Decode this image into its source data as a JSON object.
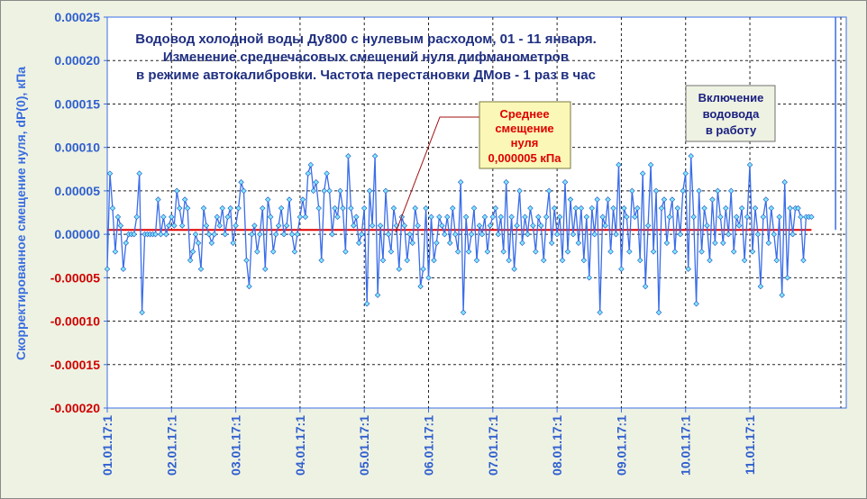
{
  "chart_data": {
    "type": "line",
    "title_lines": [
      "Водовод холодной воды Ду800 с нулевым расходом, 01 - 11 января.",
      "Изменение среднечасовых смещений нуля дифманометров",
      "в режиме автокалибровки. Частота перестановки ДМов - 1 раз в час"
    ],
    "ylabel": "Скорректированное смещение нуля, dP(0), кПа",
    "ylim": [
      -0.0002,
      0.00025
    ],
    "yticks": [
      0.00025,
      0.0002,
      0.00015,
      0.0001,
      5e-05,
      0.0,
      -5e-05,
      -0.0001,
      -0.00015,
      -0.0002
    ],
    "ytick_labels": [
      "0.00025",
      "0.00020",
      "0.00015",
      "0.00010",
      "0.00005",
      "0.00000",
      "-0.00005",
      "-0.00010",
      "-0.00015",
      "-0.00020"
    ],
    "xtick_labels": [
      "01.01.17:1",
      "02.01.17:1",
      "03.01.17:1",
      "04.01.17:1",
      "05.01.17:1",
      "06.01.17:1",
      "07.01.17:1",
      "08.01.17:1",
      "09.01.17:1",
      "10.01.17:1",
      "11.01.17:1"
    ],
    "points_per_day": 24,
    "grid": true,
    "mean_value": 5e-06,
    "colors": {
      "series": "#3a6de8",
      "marker": "#7fe8ff",
      "mean_line": "#e00000",
      "frame": "#3a6de8"
    },
    "series": [
      {
        "values": [
          -4e-05,
          7e-05,
          3e-05,
          -2e-05,
          2e-05,
          1e-05,
          -4e-05,
          -1e-05,
          0.0,
          0.0,
          0.0,
          2e-05,
          7e-05,
          -9e-05,
          0.0,
          0.0,
          0.0,
          0.0,
          0.0,
          4e-05,
          0.0,
          2e-05,
          0.0,
          1e-05,
          2e-05,
          1e-05,
          5e-05,
          3e-05,
          1e-05,
          4e-05,
          3e-05,
          -3e-05,
          -2e-05,
          0.0,
          -1e-05,
          -4e-05,
          3e-05,
          1e-05,
          0.0,
          -1e-05,
          0.0,
          2e-05,
          1e-05,
          3e-05,
          0.0,
          2e-05,
          3e-05,
          -1e-05,
          1e-05,
          3e-05,
          6e-05,
          5e-05,
          -3e-05,
          -6e-05,
          0.0,
          1e-05,
          -2e-05,
          0.0,
          3e-05,
          -4e-05,
          4e-05,
          2e-05,
          -2e-05,
          0.0,
          1e-05,
          3e-05,
          0.0,
          1e-05,
          4e-05,
          0.0,
          -2e-05,
          0.0,
          2e-05,
          4e-05,
          2e-05,
          7e-05,
          8e-05,
          5e-05,
          6e-05,
          3e-05,
          -3e-05,
          5e-05,
          7e-05,
          5e-05,
          0.0,
          3e-05,
          2e-05,
          5e-05,
          3e-05,
          -2e-05,
          9e-05,
          3e-05,
          1e-05,
          2e-05,
          -1e-05,
          0.0,
          3e-05,
          -8e-05,
          5e-05,
          1e-05,
          9e-05,
          -7e-05,
          1e-05,
          -3e-05,
          5e-05,
          0.0,
          -2e-05,
          3e-05,
          1e-05,
          -4e-05,
          2e-05,
          1e-05,
          -3e-05,
          0.0,
          -1e-05,
          3e-05,
          1e-05,
          -6e-05,
          -4e-05,
          3e-05,
          -5e-05,
          2e-05,
          -3e-05,
          -1e-05,
          2e-05,
          1e-05,
          0.0,
          2e-05,
          -1e-05,
          3e-05,
          0.0,
          -2e-05,
          6e-05,
          -9e-05,
          2e-05,
          -2e-05,
          0.0,
          3e-05,
          -3e-05,
          1e-05,
          0.0,
          2e-05,
          -2e-05,
          1e-05,
          2e-05,
          3e-05,
          0.0,
          2e-05,
          -2e-05,
          6e-05,
          -3e-05,
          2e-05,
          -4e-05,
          1e-05,
          5e-05,
          -1e-05,
          2e-05,
          0.0,
          3e-05,
          1e-05,
          -2e-05,
          2e-05,
          1e-05,
          -3e-05,
          2e-05,
          5e-05,
          -1e-05,
          3e-05,
          0.0,
          2e-05,
          -3e-05,
          6e-05,
          -2e-05,
          4e-05,
          0.0,
          3e-05,
          -1e-05,
          3e-05,
          -3e-05,
          2e-05,
          -5e-05,
          3e-05,
          0.0,
          4e-05,
          -9e-05,
          2e-05,
          1e-05,
          4e-05,
          -2e-05,
          3e-05,
          0.0,
          8e-05,
          -4e-05,
          3e-05,
          2e-05,
          -2e-05,
          5e-05,
          2e-05,
          3e-05,
          -3e-05,
          7e-05,
          -6e-05,
          1e-05,
          8e-05,
          -2e-05,
          5e-05,
          -9e-05,
          3e-05,
          4e-05,
          -1e-05,
          2e-05,
          4e-05,
          -2e-05,
          3e-05,
          0.0,
          5e-05,
          7e-05,
          -4e-05,
          9e-05,
          2e-05,
          -8e-05,
          5e-05,
          -2e-05,
          3e-05,
          1e-05,
          -3e-05,
          4e-05,
          -1e-05,
          5e-05,
          2e-05,
          -1e-05,
          3e-05,
          0.0,
          5e-05,
          -2e-05,
          2e-05,
          1e-05,
          3e-05,
          -3e-05,
          2e-05,
          8e-05,
          -2e-05,
          3e-05,
          0.0,
          -6e-05,
          2e-05,
          4e-05,
          -1e-05,
          3e-05,
          0.0,
          -3e-05,
          2e-05,
          -7e-05,
          6e-05,
          -5e-05,
          3e-05,
          0.0,
          3e-05,
          3e-05,
          2e-05,
          -3e-05,
          2e-05,
          2e-05,
          2e-05
        ]
      }
    ],
    "event_line_at_point": 272,
    "annotations": {
      "mean_label": [
        "Среднее",
        "смещение",
        "нуля",
        "0,000005 кПа"
      ],
      "event_label": [
        "Включение",
        "водовода",
        "в работу"
      ]
    }
  }
}
